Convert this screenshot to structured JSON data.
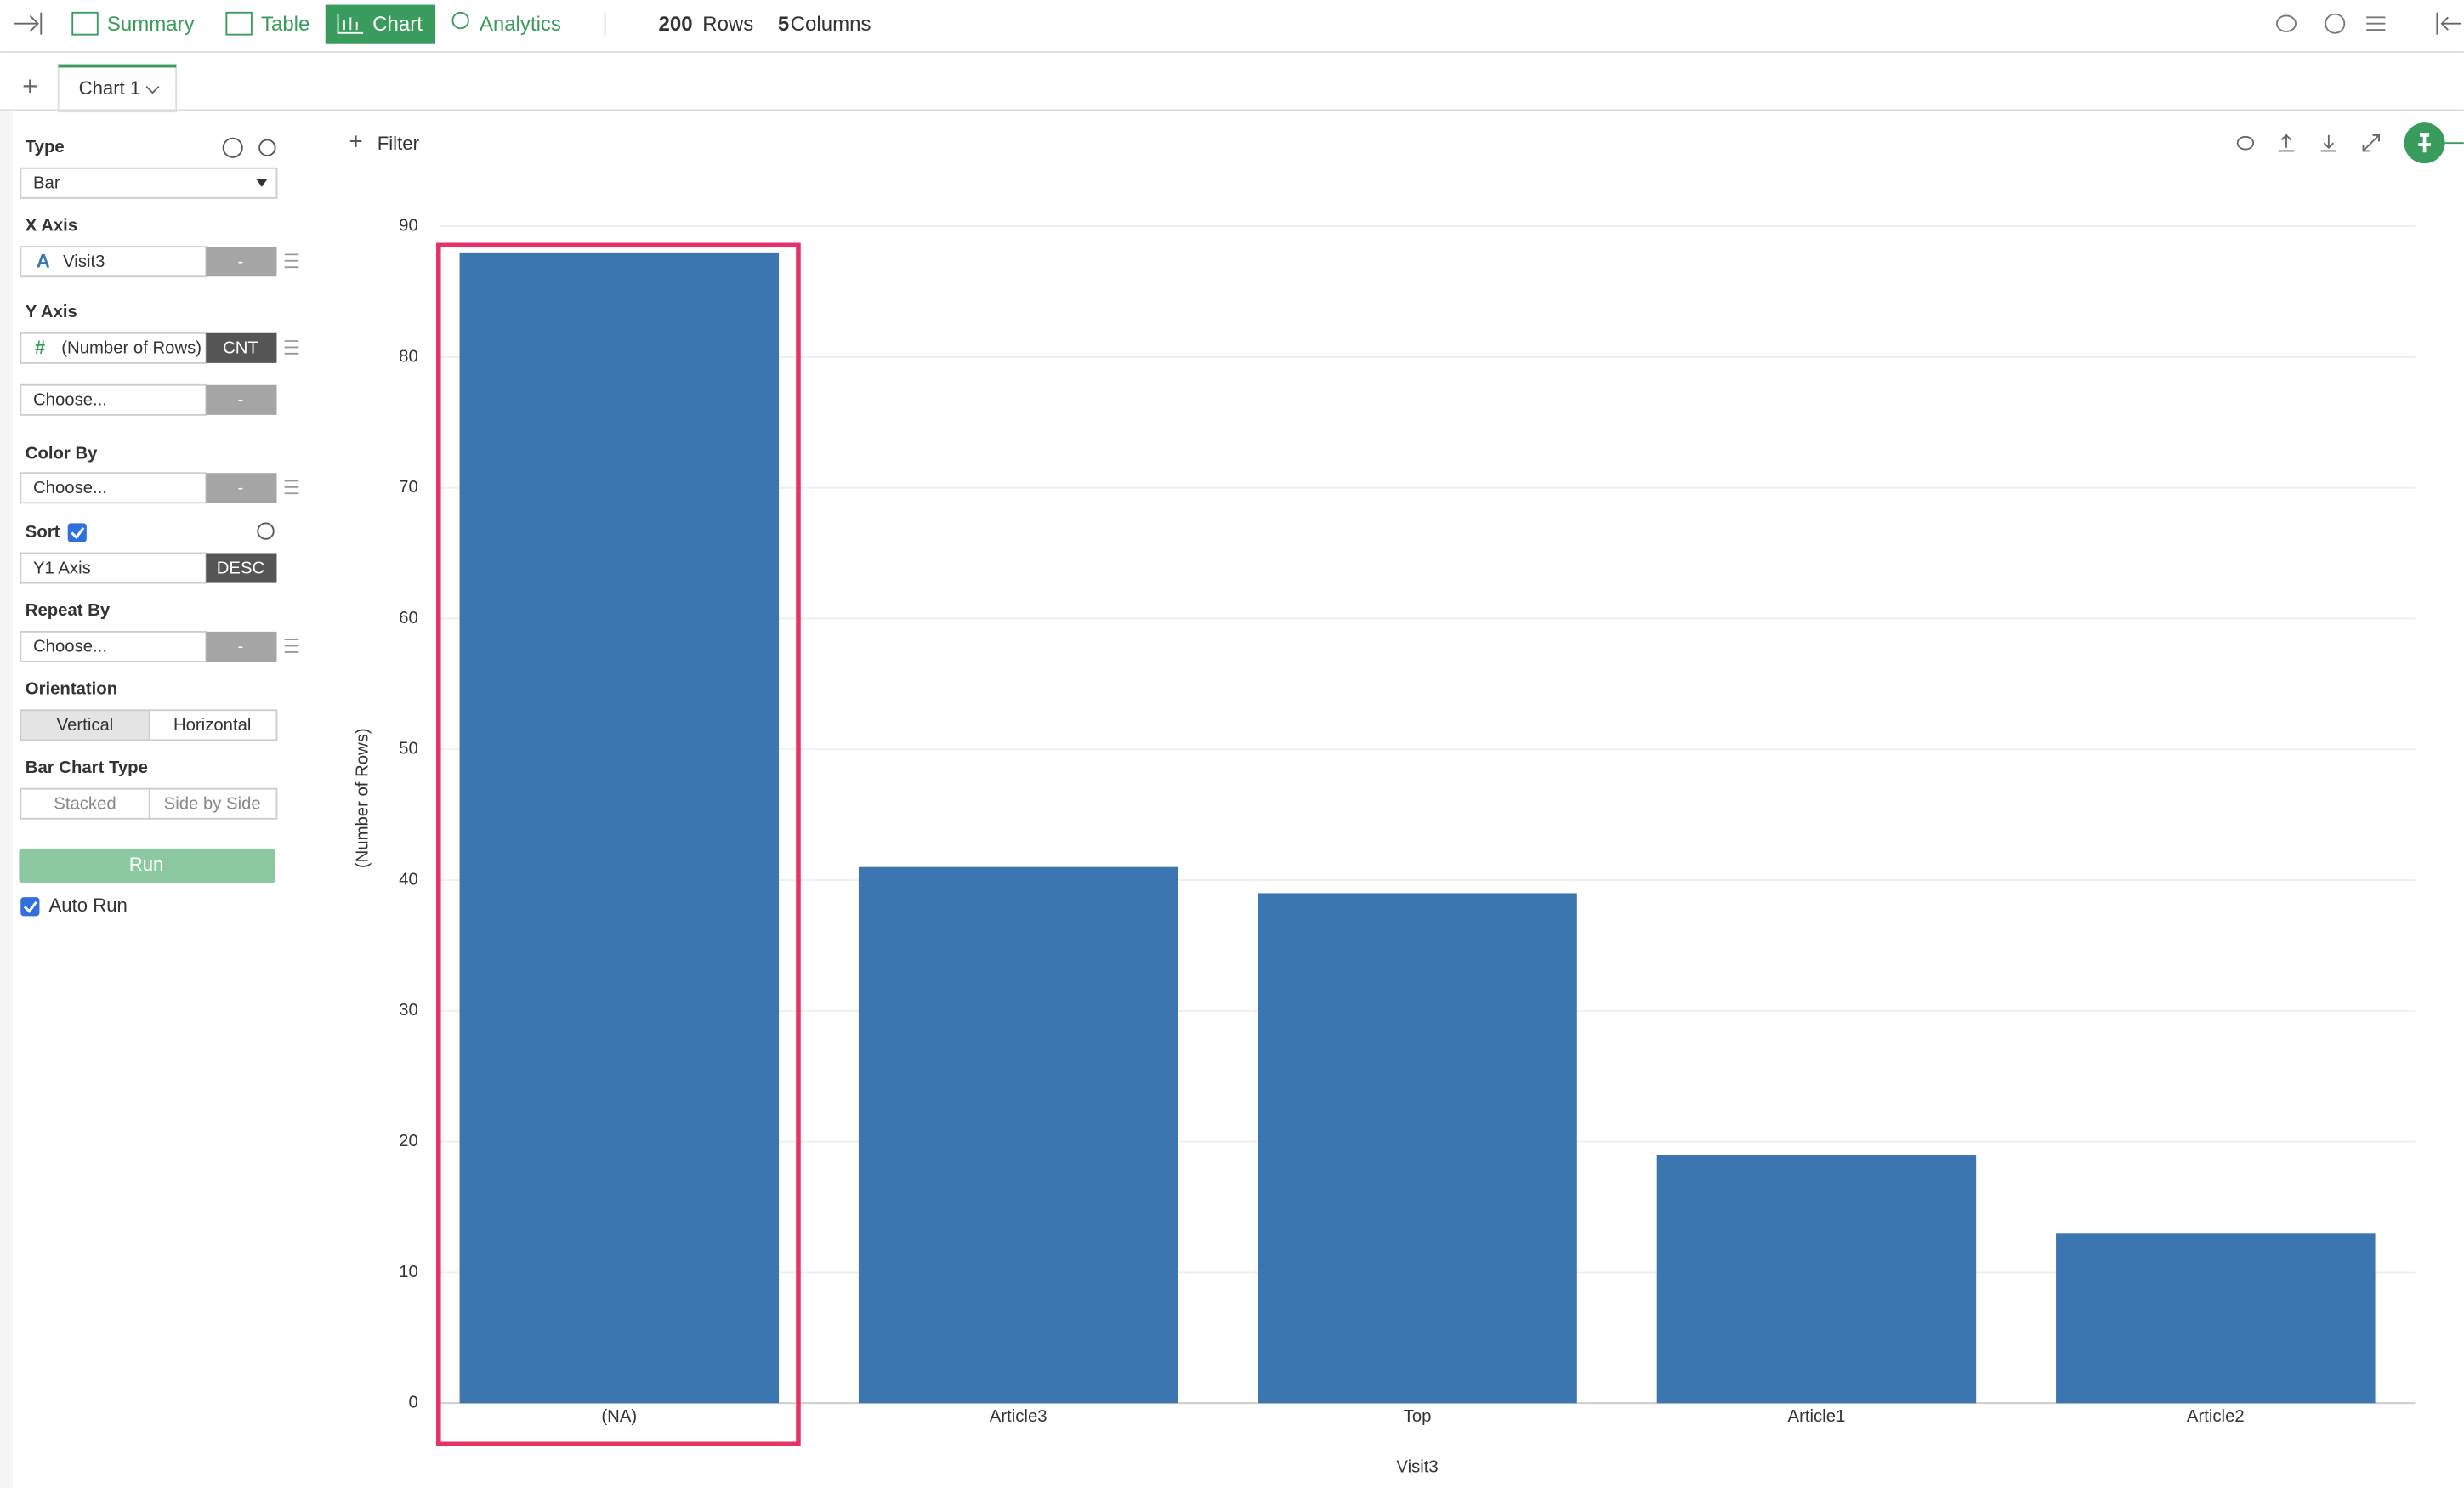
{
  "toolbar": {
    "tabs": [
      "Summary",
      "Table",
      "Chart",
      "Analytics"
    ],
    "rows": "200",
    "rows_label": "Rows",
    "columns": "5",
    "columns_label": "Columns"
  },
  "chart_tab": "Chart 1",
  "sidebar": {
    "type_label": "Type",
    "type_value": "Bar",
    "x_axis_label": "X Axis",
    "x_axis_icon": "A",
    "x_axis_value": "Visit3",
    "x_axis_button": "-",
    "y_axis_label": "Y Axis",
    "y_axis_icon": "#",
    "y_axis_value": "(Number of Rows)",
    "y_axis_button": "CNT",
    "y_axis2_value": "Choose...",
    "y_axis2_button": "-",
    "color_by_label": "Color By",
    "color_by_value": "Choose...",
    "color_by_button": "-",
    "sort_label": "Sort",
    "sort_value": "Y1 Axis",
    "sort_button": "DESC",
    "repeat_by_label": "Repeat By",
    "repeat_by_value": "Choose...",
    "repeat_by_button": "-",
    "orientation_label": "Orientation",
    "orientation_options": [
      "Vertical",
      "Horizontal"
    ],
    "bar_type_label": "Bar Chart Type",
    "bar_type_options": [
      "Stacked",
      "Side by Side"
    ],
    "run": "Run",
    "auto_run": "Auto Run"
  },
  "filter": "Filter",
  "chart_data": {
    "type": "bar",
    "x_label": "Visit3",
    "y_label": "(Number of Rows)",
    "categories": [
      "(NA)",
      "Article3",
      "Top",
      "Article1",
      "Article2"
    ],
    "values": [
      88,
      41,
      39,
      19,
      13
    ],
    "color": "#3b76b0",
    "ylim": [
      0,
      90
    ],
    "yticks": [
      0,
      10,
      20,
      30,
      40,
      50,
      60,
      70,
      80,
      90
    ],
    "grid": true
  }
}
